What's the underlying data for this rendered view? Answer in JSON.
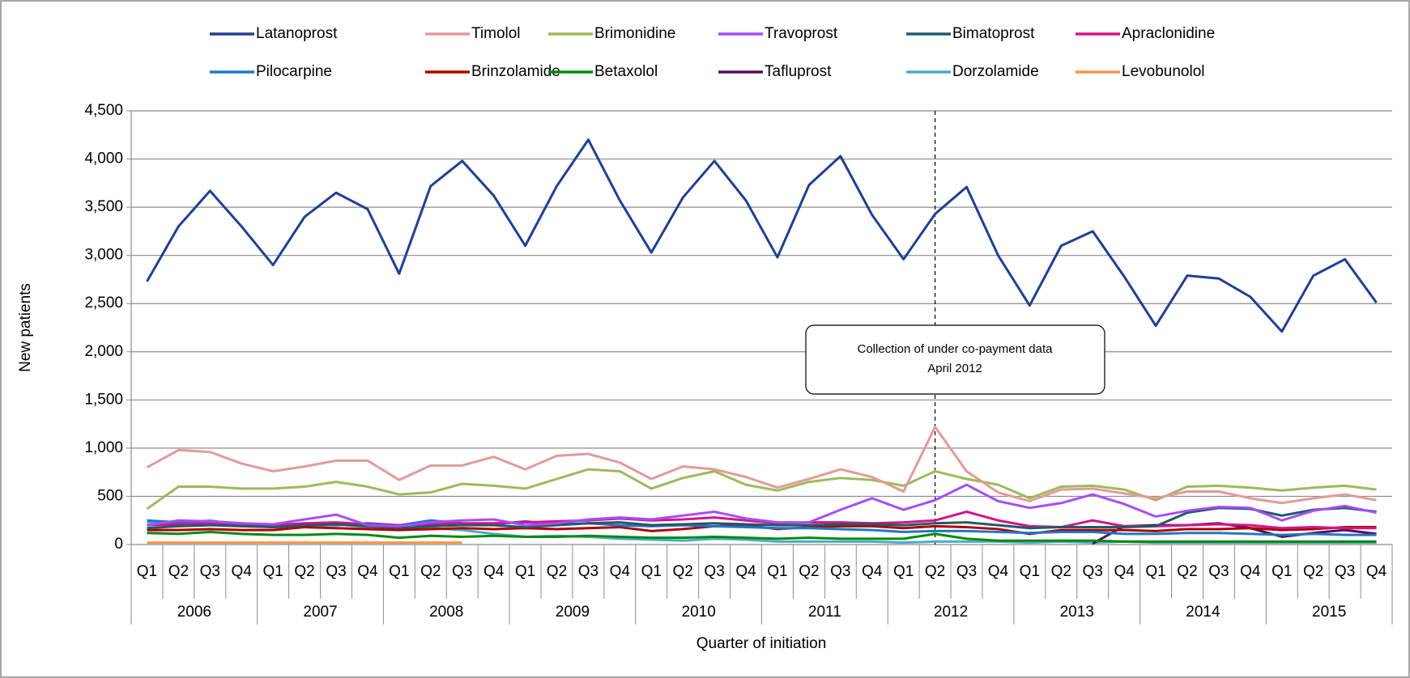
{
  "chart_data": {
    "type": "line",
    "y_label": "New patients",
    "x_label": "Quarter of initiation",
    "annotation": [
      "Collection of under co-payment data",
      "April 2012"
    ],
    "categories": [
      "Q1",
      "Q2",
      "Q3",
      "Q4",
      "Q1",
      "Q2",
      "Q3",
      "Q4",
      "Q1",
      "Q2",
      "Q3",
      "Q4",
      "Q1",
      "Q2",
      "Q3",
      "Q4",
      "Q1",
      "Q2",
      "Q3",
      "Q4",
      "Q1",
      "Q2",
      "Q3",
      "Q4",
      "Q1",
      "Q2",
      "Q3",
      "Q4",
      "Q1",
      "Q2",
      "Q3",
      "Q4",
      "Q1",
      "Q2",
      "Q3",
      "Q4",
      "Q1",
      "Q2",
      "Q3",
      "Q4"
    ],
    "category_groups": [
      "2006",
      "2007",
      "2008",
      "2009",
      "2010",
      "2011",
      "2012",
      "2013",
      "2014",
      "2015"
    ],
    "ylim": [
      0,
      4500
    ],
    "yticks": [
      0,
      500,
      {
        "value": 1000,
        "label": "1,000"
      },
      {
        "value": 1500,
        "label": "1,500"
      },
      {
        "value": 2000,
        "label": "2,000"
      },
      {
        "value": 2500,
        "label": "2,500"
      },
      {
        "value": 3000,
        "label": "3,000"
      },
      {
        "value": 3500,
        "label": "3,500"
      },
      {
        "value": 4000,
        "label": "4,000"
      },
      {
        "value": 4500,
        "label": "4,500"
      }
    ],
    "grid": true,
    "legend_position": "top",
    "series": [
      {
        "name": "Latanoprost",
        "color": "#1f3f94",
        "values": [
          2730,
          3300,
          3670,
          3300,
          2900,
          3400,
          3650,
          3480,
          2810,
          3720,
          3980,
          3620,
          3100,
          3720,
          4200,
          3570,
          3030,
          3600,
          3980,
          3570,
          2980,
          3730,
          4030,
          3420,
          2960,
          3430,
          3710,
          3000,
          2480,
          3100,
          3250,
          2780,
          2270,
          2790,
          2760,
          2570,
          2210,
          2790,
          2960,
          2510
        ]
      },
      {
        "name": "Timolol",
        "color": "#e39a9a",
        "values": [
          800,
          980,
          960,
          840,
          760,
          810,
          870,
          870,
          670,
          820,
          820,
          910,
          780,
          920,
          940,
          850,
          680,
          810,
          780,
          700,
          590,
          680,
          780,
          700,
          550,
          1220,
          760,
          540,
          450,
          570,
          580,
          530,
          480,
          550,
          550,
          480,
          430,
          480,
          520,
          460
        ]
      },
      {
        "name": "Brimonidine",
        "color": "#9bbb59",
        "values": [
          370,
          600,
          600,
          580,
          580,
          600,
          650,
          600,
          520,
          540,
          630,
          610,
          580,
          680,
          780,
          760,
          580,
          690,
          760,
          620,
          560,
          650,
          690,
          670,
          610,
          760,
          680,
          620,
          480,
          600,
          610,
          570,
          460,
          600,
          610,
          590,
          560,
          590,
          610,
          570
        ]
      },
      {
        "name": "Travoprost",
        "color": "#a64dff",
        "values": [
          200,
          250,
          240,
          220,
          210,
          260,
          310,
          200,
          190,
          230,
          250,
          260,
          200,
          220,
          260,
          280,
          260,
          300,
          340,
          270,
          230,
          230,
          360,
          480,
          360,
          460,
          620,
          450,
          380,
          430,
          520,
          420,
          290,
          350,
          390,
          380,
          250,
          350,
          400,
          330
        ]
      },
      {
        "name": "Bimatoprost",
        "color": "#215a69",
        "values": [
          170,
          190,
          200,
          190,
          180,
          200,
          210,
          190,
          170,
          190,
          200,
          200,
          180,
          200,
          220,
          230,
          200,
          210,
          220,
          210,
          200,
          200,
          210,
          210,
          200,
          220,
          230,
          200,
          170,
          180,
          180,
          180,
          190,
          330,
          380,
          370,
          300,
          360,
          380,
          340
        ]
      },
      {
        "name": "Apraclonidine",
        "color": "#d4148a",
        "values": [
          200,
          210,
          220,
          210,
          200,
          220,
          230,
          210,
          200,
          210,
          220,
          220,
          230,
          240,
          250,
          270,
          250,
          260,
          280,
          250,
          220,
          230,
          230,
          220,
          230,
          250,
          340,
          250,
          190,
          180,
          250,
          190,
          190,
          200,
          210,
          200,
          170,
          180,
          170,
          170
        ]
      },
      {
        "name": "Pilocarpine",
        "color": "#1f77c8",
        "values": [
          250,
          230,
          240,
          220,
          200,
          210,
          200,
          220,
          200,
          250,
          220,
          210,
          240,
          210,
          220,
          200,
          190,
          200,
          190,
          180,
          170,
          170,
          160,
          150,
          130,
          140,
          140,
          130,
          120,
          130,
          130,
          110,
          110,
          120,
          120,
          110,
          100,
          110,
          100,
          100
        ]
      },
      {
        "name": "Brinzolamide",
        "color": "#b00000",
        "values": [
          150,
          150,
          160,
          150,
          150,
          180,
          170,
          160,
          150,
          160,
          170,
          160,
          170,
          160,
          170,
          180,
          140,
          160,
          190,
          200,
          160,
          180,
          190,
          190,
          170,
          190,
          180,
          160,
          110,
          150,
          150,
          150,
          140,
          160,
          160,
          170,
          150,
          160,
          180,
          180
        ]
      },
      {
        "name": "Betaxolol",
        "color": "#078a0e",
        "values": [
          120,
          110,
          130,
          110,
          100,
          100,
          110,
          100,
          70,
          90,
          80,
          90,
          80,
          80,
          90,
          80,
          70,
          70,
          80,
          70,
          60,
          70,
          60,
          60,
          60,
          110,
          60,
          40,
          40,
          40,
          40,
          30,
          30,
          30,
          30,
          30,
          30,
          30,
          30,
          30
        ]
      },
      {
        "name": "Tafluprost",
        "color": "#5a0a5a",
        "values": [
          null,
          null,
          null,
          null,
          null,
          null,
          null,
          null,
          null,
          null,
          null,
          null,
          null,
          null,
          null,
          null,
          null,
          null,
          null,
          null,
          null,
          null,
          null,
          null,
          null,
          null,
          null,
          null,
          null,
          null,
          10,
          190,
          200,
          200,
          220,
          170,
          80,
          120,
          150,
          110
        ]
      },
      {
        "name": "Dorzolamide",
        "color": "#4bacc6",
        "values": [
          230,
          220,
          250,
          200,
          180,
          180,
          210,
          180,
          160,
          170,
          150,
          110,
          80,
          90,
          80,
          60,
          50,
          40,
          60,
          50,
          30,
          30,
          30,
          30,
          20,
          30,
          30,
          30,
          20,
          30,
          20,
          30,
          20,
          20,
          20,
          20,
          20,
          20,
          20,
          20
        ]
      },
      {
        "name": "Levobunolol",
        "color": "#f79646",
        "values": [
          20,
          20,
          20,
          20,
          20,
          20,
          20,
          20,
          20,
          20,
          20,
          null,
          null,
          null,
          null,
          null,
          null,
          null,
          null,
          null,
          null,
          null,
          null,
          null,
          null,
          null,
          null,
          null,
          null,
          null,
          null,
          null,
          null,
          null,
          null,
          null,
          null,
          null,
          null,
          null
        ]
      }
    ]
  }
}
